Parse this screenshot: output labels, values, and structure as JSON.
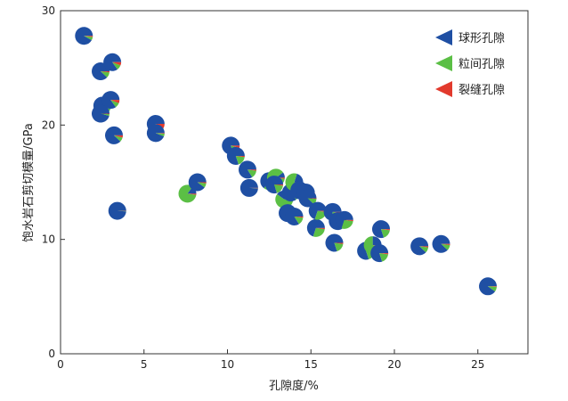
{
  "chart_data": {
    "type": "scatter",
    "marker": "pie",
    "xlabel": "孔隙度/%",
    "ylabel": "饱水岩石剪切模量/GPa",
    "xlim": [
      0,
      28
    ],
    "ylim": [
      0,
      30
    ],
    "xticks": [
      "0",
      "5",
      "10",
      "15",
      "20",
      "25"
    ],
    "yticks": [
      "0",
      "10",
      "20",
      "30"
    ],
    "legend_position": "top-right",
    "components": [
      {
        "name": "球形孔隙",
        "color": "#1f4fa3"
      },
      {
        "name": "粒间孔隙",
        "color": "#5bbf45"
      },
      {
        "name": "裂缝孔隙",
        "color": "#e23a2d"
      }
    ],
    "points": [
      {
        "x": 1.4,
        "y": 27.8,
        "fractions": [
          0.92,
          0.06,
          0.02
        ]
      },
      {
        "x": 2.4,
        "y": 24.7,
        "fractions": [
          0.88,
          0.1,
          0.02
        ]
      },
      {
        "x": 3.1,
        "y": 25.5,
        "fractions": [
          0.85,
          0.09,
          0.06
        ]
      },
      {
        "x": 2.5,
        "y": 21.7,
        "fractions": [
          0.86,
          0.12,
          0.02
        ]
      },
      {
        "x": 3.0,
        "y": 22.2,
        "fractions": [
          0.85,
          0.09,
          0.06
        ]
      },
      {
        "x": 2.4,
        "y": 21.0,
        "fractions": [
          0.96,
          0.03,
          0.01
        ]
      },
      {
        "x": 3.2,
        "y": 19.1,
        "fractions": [
          0.88,
          0.08,
          0.04
        ]
      },
      {
        "x": 3.4,
        "y": 12.5,
        "fractions": [
          0.99,
          0.005,
          0.005
        ]
      },
      {
        "x": 5.7,
        "y": 20.1,
        "fractions": [
          0.72,
          0.2,
          0.08
        ]
      },
      {
        "x": 5.7,
        "y": 19.3,
        "fractions": [
          0.94,
          0.05,
          0.01
        ]
      },
      {
        "x": 7.6,
        "y": 14.0,
        "fractions": [
          0.15,
          0.83,
          0.02
        ]
      },
      {
        "x": 8.2,
        "y": 15.0,
        "fractions": [
          0.9,
          0.08,
          0.02
        ]
      },
      {
        "x": 10.2,
        "y": 18.2,
        "fractions": [
          0.8,
          0.16,
          0.04
        ]
      },
      {
        "x": 10.5,
        "y": 17.3,
        "fractions": [
          0.8,
          0.18,
          0.02
        ]
      },
      {
        "x": 11.2,
        "y": 16.1,
        "fractions": [
          0.84,
          0.14,
          0.02
        ]
      },
      {
        "x": 11.3,
        "y": 14.5,
        "fractions": [
          0.99,
          0.005,
          0.005
        ]
      },
      {
        "x": 12.5,
        "y": 15.1,
        "fractions": [
          0.65,
          0.34,
          0.01
        ]
      },
      {
        "x": 12.9,
        "y": 15.4,
        "fractions": [
          0.1,
          0.88,
          0.02
        ]
      },
      {
        "x": 12.8,
        "y": 14.8,
        "fractions": [
          0.8,
          0.18,
          0.02
        ]
      },
      {
        "x": 13.4,
        "y": 13.5,
        "fractions": [
          0.4,
          0.58,
          0.02
        ]
      },
      {
        "x": 13.6,
        "y": 12.3,
        "fractions": [
          0.8,
          0.18,
          0.02
        ]
      },
      {
        "x": 13.8,
        "y": 14.1,
        "fractions": [
          0.85,
          0.14,
          0.01
        ]
      },
      {
        "x": 14.0,
        "y": 15.0,
        "fractions": [
          0.2,
          0.78,
          0.02
        ]
      },
      {
        "x": 14.0,
        "y": 12.0,
        "fractions": [
          0.84,
          0.14,
          0.02
        ]
      },
      {
        "x": 14.3,
        "y": 14.3,
        "fractions": [
          0.85,
          0.14,
          0.01
        ]
      },
      {
        "x": 14.7,
        "y": 14.1,
        "fractions": [
          0.88,
          0.11,
          0.01
        ]
      },
      {
        "x": 14.8,
        "y": 13.6,
        "fractions": [
          0.88,
          0.11,
          0.01
        ]
      },
      {
        "x": 15.3,
        "y": 11.0,
        "fractions": [
          0.7,
          0.28,
          0.02
        ]
      },
      {
        "x": 15.4,
        "y": 12.5,
        "fractions": [
          0.7,
          0.28,
          0.02
        ]
      },
      {
        "x": 16.3,
        "y": 12.4,
        "fractions": [
          0.75,
          0.23,
          0.02
        ]
      },
      {
        "x": 16.4,
        "y": 9.7,
        "fractions": [
          0.8,
          0.18,
          0.02
        ]
      },
      {
        "x": 16.6,
        "y": 11.6,
        "fractions": [
          0.85,
          0.14,
          0.01
        ]
      },
      {
        "x": 17.0,
        "y": 11.7,
        "fractions": [
          0.7,
          0.28,
          0.02
        ]
      },
      {
        "x": 18.3,
        "y": 9.0,
        "fractions": [
          0.8,
          0.18,
          0.02
        ]
      },
      {
        "x": 18.7,
        "y": 9.5,
        "fractions": [
          0.25,
          0.73,
          0.02
        ]
      },
      {
        "x": 19.1,
        "y": 8.8,
        "fractions": [
          0.8,
          0.18,
          0.02
        ]
      },
      {
        "x": 19.2,
        "y": 10.9,
        "fractions": [
          0.8,
          0.18,
          0.02
        ]
      },
      {
        "x": 21.5,
        "y": 9.4,
        "fractions": [
          0.88,
          0.1,
          0.02
        ]
      },
      {
        "x": 22.8,
        "y": 9.6,
        "fractions": [
          0.88,
          0.1,
          0.02
        ]
      },
      {
        "x": 25.6,
        "y": 5.9,
        "fractions": [
          0.9,
          0.09,
          0.01
        ]
      }
    ]
  }
}
